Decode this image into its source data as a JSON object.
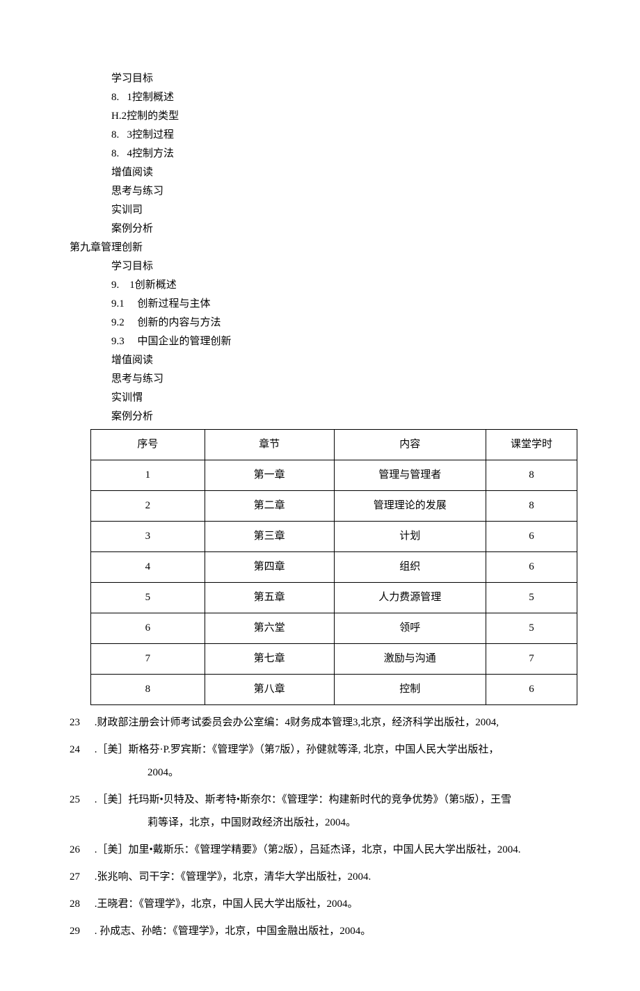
{
  "outline": {
    "lines": [
      "学习目标",
      "8.   1控制概述",
      "H.2控制的类型",
      "8.   3控制过程",
      "8.   4控制方法",
      "增值阅读",
      "思考与练习",
      "实训司",
      "案例分析"
    ],
    "chapter9_title": "第九章管理创新",
    "lines2": [
      "学习目标",
      "9.    1创新概述",
      "9.1     创新过程与主体",
      "9.2     创新的内容与方法",
      "9.3     中国企业的管理创新",
      "增值阅读",
      "思考与练习",
      "实训㥜",
      "案例分析"
    ]
  },
  "table": {
    "headers": [
      "序号",
      "章节",
      "内容",
      "课堂学时"
    ],
    "rows": [
      [
        "1",
        "第一章",
        "管理与管理者",
        "8"
      ],
      [
        "2",
        "第二章",
        "管理理论的发展",
        "8"
      ],
      [
        "3",
        "第三章",
        "计划",
        "6"
      ],
      [
        "4",
        "第四章",
        "组织",
        "6"
      ],
      [
        "5",
        "第五章",
        "人力费源管理",
        "5"
      ],
      [
        "6",
        "第六堂",
        "领呼",
        "5"
      ],
      [
        "7",
        "第七章",
        "激励与沟通",
        "7"
      ],
      [
        "8",
        "第八章",
        "控制",
        "6"
      ]
    ],
    "col_widths": [
      "150px",
      "170px",
      "200px",
      "120px"
    ]
  },
  "references": [
    {
      "num": "23",
      "text": " .财政部注册会计师考试委员会办公室编：4财务成本管理3,北京，经济科学出版社，2004,",
      "wrap": ""
    },
    {
      "num": "24",
      "text": " .［美］斯格芬·P.罗宾斯：《管理学》（第7版），孙健就等泽, 北京，中国人民大学出版社，",
      "wrap": "2004。"
    },
    {
      "num": "25",
      "text": " .［美］托玛斯•贝特及、斯考特•斯奈尔：《管理学：构建新时代的竞争优势》（第5版），王雪",
      "wrap": "莉等译，北京，中国财政经济出版社，2004。"
    },
    {
      "num": "26",
      "text": " .［美］加里•戴斯乐：《管理学精要》（第2版），吕延杰译，北京，中国人民大学出版社，2004.",
      "wrap": ""
    },
    {
      "num": "27",
      "text": " .张兆响、司干字：《管理学》，北京，清华大学出版社，2004.",
      "wrap": ""
    },
    {
      "num": "28",
      "text": " .王晓君：《管理学》，北京，中国人民大学出版社，2004。",
      "wrap": ""
    },
    {
      "num": "29",
      "text": " . 孙成志、孙皓：《管理学》，北京，中国金融出版社，2004。",
      "wrap": ""
    }
  ]
}
